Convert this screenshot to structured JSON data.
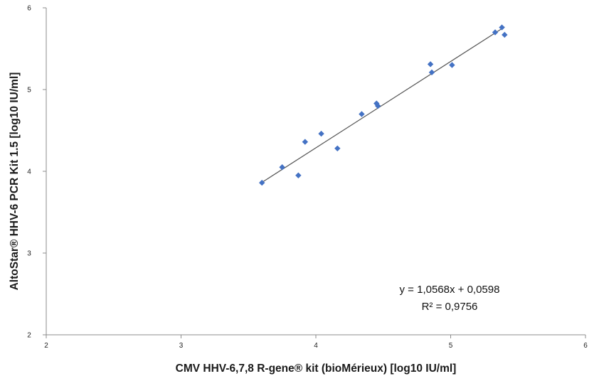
{
  "chart_data": {
    "type": "scatter",
    "xlabel": "CMV HHV-6,7,8 R-gene® kit (bioMérieux) [log10 IU/ml]",
    "ylabel": "AltoStar® HHV-6 PCR Kit 1.5 [log10 IU/ml]",
    "xlim": [
      2,
      6
    ],
    "ylim": [
      2,
      6
    ],
    "x_ticks": [
      "2",
      "3",
      "4",
      "5",
      "6"
    ],
    "y_ticks": [
      "2",
      "3",
      "4",
      "5",
      "6"
    ],
    "grid": false,
    "legend": "none",
    "series": [
      {
        "marker": "diamond",
        "color": "#4472C4",
        "points": [
          {
            "x": 3.6,
            "y": 3.86
          },
          {
            "x": 3.75,
            "y": 4.05
          },
          {
            "x": 3.87,
            "y": 3.95
          },
          {
            "x": 3.92,
            "y": 4.36
          },
          {
            "x": 4.04,
            "y": 4.46
          },
          {
            "x": 4.16,
            "y": 4.28
          },
          {
            "x": 4.34,
            "y": 4.7
          },
          {
            "x": 4.45,
            "y": 4.83
          },
          {
            "x": 4.46,
            "y": 4.8
          },
          {
            "x": 4.85,
            "y": 5.31
          },
          {
            "x": 4.86,
            "y": 5.21
          },
          {
            "x": 5.01,
            "y": 5.3
          },
          {
            "x": 5.33,
            "y": 5.7
          },
          {
            "x": 5.38,
            "y": 5.76
          },
          {
            "x": 5.4,
            "y": 5.67
          }
        ]
      }
    ],
    "trendline": {
      "slope": 1.0568,
      "intercept": 0.0598,
      "x_range": [
        3.6,
        5.4
      ],
      "color": "#555555"
    },
    "annotations": [
      "y = 1,0568x + 0,0598",
      "R² = 0,9756"
    ]
  }
}
